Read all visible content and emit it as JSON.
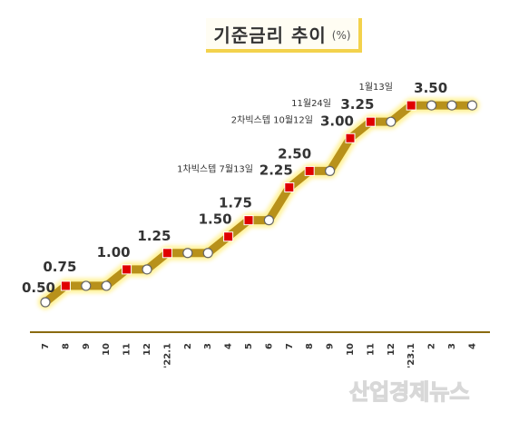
{
  "title": "기준금리 추이",
  "unit": "(%)",
  "watermark": "산업경제뉴스",
  "colors": {
    "line": "#b8911a",
    "glow": "#fff08a",
    "increase_marker": "#e00000",
    "axis": "#8a6a10"
  },
  "chart_data": {
    "type": "line",
    "title": "기준금리 추이",
    "unit": "%",
    "categories": [
      "7",
      "8",
      "9",
      "10",
      "11",
      "12",
      "'22.1",
      "2",
      "3",
      "4",
      "5",
      "6",
      "7",
      "8",
      "9",
      "10",
      "11",
      "12",
      "'23.1",
      "2",
      "3",
      "4"
    ],
    "values": [
      0.5,
      0.75,
      0.75,
      0.75,
      1.0,
      1.0,
      1.25,
      1.25,
      1.25,
      1.5,
      1.75,
      1.75,
      2.25,
      2.5,
      2.5,
      3.0,
      3.25,
      3.25,
      3.5,
      3.5,
      3.5,
      3.5
    ],
    "increase_points": [
      1,
      4,
      6,
      9,
      10,
      12,
      13,
      15,
      16,
      18
    ],
    "data_labels": [
      {
        "index": 0,
        "text": "0.50"
      },
      {
        "index": 1,
        "text": "0.75"
      },
      {
        "index": 4,
        "text": "1.00"
      },
      {
        "index": 6,
        "text": "1.25"
      },
      {
        "index": 9,
        "text": "1.50"
      },
      {
        "index": 10,
        "text": "1.75"
      },
      {
        "index": 12,
        "text": "2.25"
      },
      {
        "index": 13,
        "text": "2.50"
      },
      {
        "index": 15,
        "text": "3.00"
      },
      {
        "index": 16,
        "text": "3.25"
      },
      {
        "index": 18,
        "text": "3.50"
      }
    ],
    "annotations": [
      {
        "index": 12,
        "text": "1차빅스텝 7월13일"
      },
      {
        "index": 15,
        "text": "2차빅스텝 10월12일"
      },
      {
        "index": 16,
        "text": "11월24일"
      },
      {
        "index": 18,
        "text": "1월13일"
      }
    ],
    "grid": false,
    "legend": "none"
  }
}
